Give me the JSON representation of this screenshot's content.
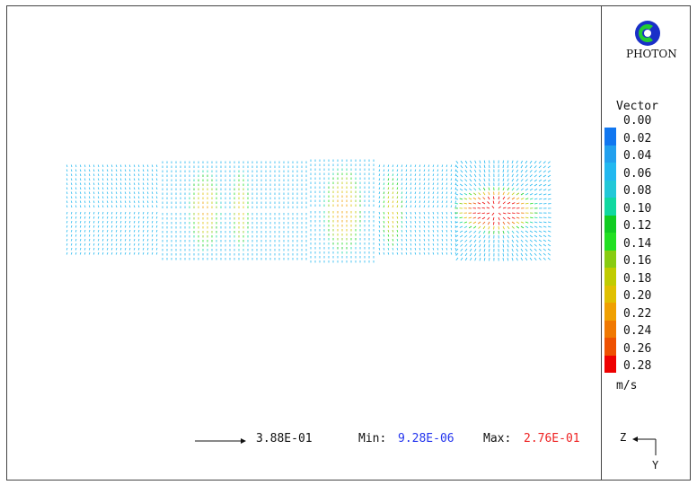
{
  "logo_text": "PHOTON",
  "legend": {
    "title": "Vector",
    "unit": "m/s",
    "levels": [
      "0.00",
      "0.02",
      "0.04",
      "0.06",
      "0.08",
      "0.10",
      "0.12",
      "0.14",
      "0.16",
      "0.18",
      "0.20",
      "0.22",
      "0.24",
      "0.26",
      "0.28"
    ],
    "colors": [
      "#0000ff",
      "#1177f0",
      "#22a0ee",
      "#22b8f0",
      "#22c8d8",
      "#11d8a0",
      "#11cc22",
      "#22e022",
      "#88cc11",
      "#c0cc00",
      "#e0c000",
      "#f0a000",
      "#f07800",
      "#ee5000",
      "#ee0000"
    ]
  },
  "reference_vector": {
    "value": "3.88E-01"
  },
  "range": {
    "min_label": "Min:",
    "min_value": "9.28E-06",
    "max_label": "Max:",
    "max_value": "2.76E-01"
  },
  "axes": {
    "horizontal": "Z",
    "vertical": "Y"
  }
}
